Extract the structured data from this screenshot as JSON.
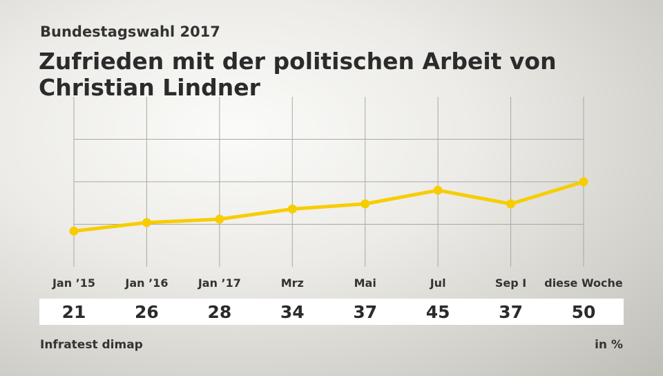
{
  "header": {
    "subtitle": "Bundestagswahl 2017",
    "title": "Zufrieden mit der politischen Arbeit von Christian Lindner"
  },
  "footer": {
    "source": "Infratest dimap",
    "unit": "in %"
  },
  "colors": {
    "line": "#f7cd00",
    "grid": "#a9a8a2"
  },
  "chart_data": {
    "type": "line",
    "categories": [
      "Jan ’15",
      "Jan ’16",
      "Jan ’17",
      "Mrz",
      "Mai",
      "Jul",
      "Sep I",
      "diese Woche"
    ],
    "series": [
      {
        "values": [
          21,
          26,
          28,
          34,
          37,
          45,
          37,
          50
        ]
      }
    ],
    "ylim": [
      0,
      100
    ],
    "grid": true,
    "data_labels": [
      "21",
      "26",
      "28",
      "34",
      "37",
      "45",
      "37",
      "50"
    ]
  }
}
